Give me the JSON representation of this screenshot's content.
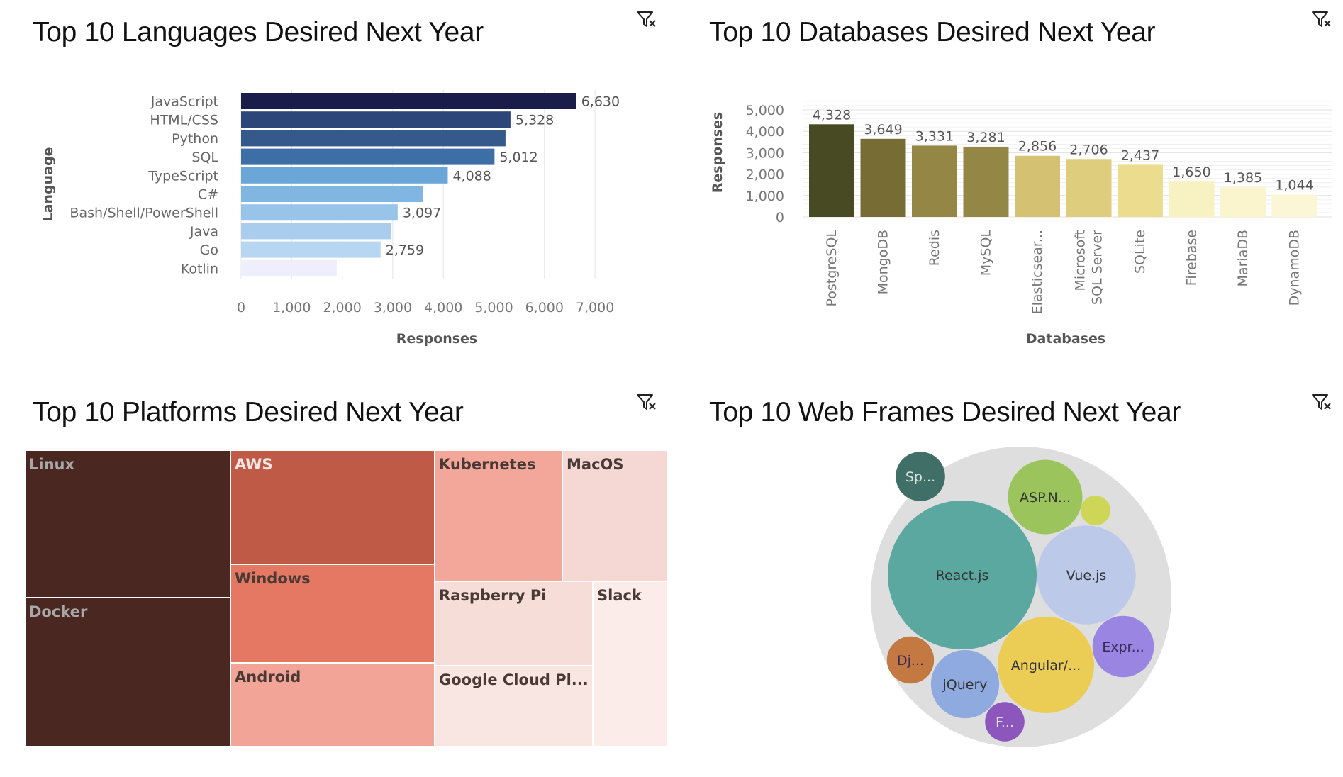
{
  "filter_icon": "filter-icon",
  "chart_data": [
    {
      "type": "bar",
      "orientation": "horizontal",
      "title": "Top 10 Languages Desired Next Year",
      "xlabel": "Responses",
      "ylabel": "Language",
      "xlim": [
        0,
        7000
      ],
      "xticks": [
        "0",
        "1,000",
        "2,000",
        "3,000",
        "4,000",
        "5,000",
        "6,000",
        "7,000"
      ],
      "grid": "vertical",
      "categories": [
        "JavaScript",
        "HTML/CSS",
        "Python",
        "SQL",
        "TypeScript",
        "C#",
        "Bash/Shell/PowerShell",
        "Java",
        "Go",
        "Kotlin"
      ],
      "values": [
        6630,
        5328,
        5230,
        5012,
        4088,
        3590,
        3097,
        2960,
        2759,
        1890
      ],
      "data_labels": [
        "6,630",
        "5,328",
        "",
        "5,012",
        "4,088",
        "",
        "3,097",
        "",
        "2,759",
        ""
      ],
      "colors": [
        "#1a1c4a",
        "#2d4679",
        "#34598a",
        "#3e6ea6",
        "#6aa7d8",
        "#80b6e1",
        "#98c4ea",
        "#aacdee",
        "#b7d6f1",
        "#efeefc"
      ]
    },
    {
      "type": "bar",
      "title": "Top 10 Databases Desired Next Year",
      "xlabel": "Databases",
      "ylabel": "Responses",
      "ylim": [
        0,
        5000
      ],
      "yticks": [
        "0",
        "1,000",
        "2,000",
        "3,000",
        "4,000",
        "5,000"
      ],
      "grid": "horizontal",
      "categories": [
        "PostgreSQL",
        "MongoDB",
        "Redis",
        "MySQL",
        "Elasticsear...",
        "Microsoft SQL Server",
        "SQLite",
        "Firebase",
        "MariaDB",
        "DynamoDB"
      ],
      "values": [
        4328,
        3649,
        3331,
        3281,
        2856,
        2706,
        2437,
        1650,
        1385,
        1044
      ],
      "data_labels": [
        "4,328",
        "3,649",
        "3,331",
        "3,281",
        "2,856",
        "2,706",
        "2,437",
        "1,650",
        "1,385",
        "1,044"
      ],
      "colors": [
        "#474a22",
        "#786c35",
        "#948645",
        "#948645",
        "#d4c272",
        "#dfcd7e",
        "#ebdc8e",
        "#f8f2c2",
        "#faf5cc",
        "#fbf7d6"
      ]
    },
    {
      "type": "treemap",
      "title": "Top 10 Platforms Desired Next Year",
      "items": [
        {
          "label": "Linux",
          "share": 0.16,
          "color": "#4a2721",
          "text_color": "#a8a8a8"
        },
        {
          "label": "Docker",
          "share": 0.16,
          "color": "#4a2721",
          "text_color": "#a8a8a8"
        },
        {
          "label": "AWS",
          "share": 0.122,
          "color": "#bf5a47",
          "text_color": "#f3e6e3"
        },
        {
          "label": "Windows",
          "share": 0.105,
          "color": "#e57863",
          "text_color": "#4a3a36"
        },
        {
          "label": "Android",
          "share": 0.089,
          "color": "#f2a497",
          "text_color": "#4a3a36"
        },
        {
          "label": "Kubernetes",
          "share": 0.072,
          "color": "#f2a79a",
          "text_color": "#4a3a36"
        },
        {
          "label": "MacOS",
          "share": 0.058,
          "color": "#f5d8d3",
          "text_color": "#4a3a36"
        },
        {
          "label": "Raspberry Pi",
          "share": 0.053,
          "color": "#f6ddd8",
          "text_color": "#4a3a36"
        },
        {
          "label": "Google Cloud Pl...",
          "share": 0.049,
          "color": "#f9e6e2",
          "text_color": "#4a3a36"
        },
        {
          "label": "Slack",
          "share": 0.061,
          "color": "#fbecea",
          "text_color": "#4a3a36"
        }
      ]
    },
    {
      "type": "bubble",
      "title": "Top 10 Web Frames Desired Next Year",
      "items": [
        {
          "label": "React.js",
          "size": 1.0,
          "color": "#5ba8a0"
        },
        {
          "label": "Vue.js",
          "size": 0.44,
          "color": "#bcc9e8"
        },
        {
          "label": "Angular/...",
          "size": 0.42,
          "color": "#ebcd56"
        },
        {
          "label": "ASP.N...",
          "size": 0.25,
          "color": "#9cc45d"
        },
        {
          "label": "jQuery",
          "size": 0.21,
          "color": "#8eaade"
        },
        {
          "label": "Expr...",
          "size": 0.17,
          "color": "#9a85e2"
        },
        {
          "label": "Sp...",
          "size": 0.11,
          "color": "#3f6f67"
        },
        {
          "label": "Dj...",
          "size": 0.1,
          "color": "#c47942"
        },
        {
          "label": "F...",
          "size": 0.07,
          "color": "#8c56bd"
        },
        {
          "label": "",
          "size": 0.04,
          "color": "#cdd656"
        }
      ]
    }
  ]
}
